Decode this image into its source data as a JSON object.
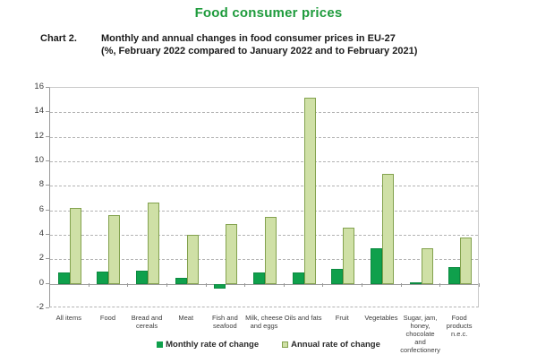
{
  "page": {
    "title": "Food consumer prices",
    "chart_label": "Chart 2.",
    "heading_line1": "Monthly and annual changes in food consumer prices in EU-27",
    "heading_line2": "(%, February 2022 compared to January 2022 and to February 2021)"
  },
  "colors": {
    "title_green": "#1e9b3c",
    "monthly_fill": "#0fa04c",
    "monthly_border": "#0b8a40",
    "annual_fill": "#cfe0a6",
    "annual_border": "#83a24e",
    "grid": "#b3b3b3",
    "frame": "#c9c9c9",
    "axis": "#999999",
    "text": "#1a1a1a",
    "axis_text": "#3c3c3c"
  },
  "chart_data": {
    "type": "bar",
    "title": "Food consumer prices",
    "xlabel": "",
    "ylabel": "",
    "ylim": [
      -2,
      16
    ],
    "ytick_step": 2,
    "grid": "horizontal-dashed",
    "legend_position": "bottom",
    "categories": [
      "All items",
      "Food",
      "Bread and\ncereals",
      "Meat",
      "Fish and\nseafood",
      "Milk, cheese\nand eggs",
      "Oils and fats",
      "Fruit",
      "Vegetables",
      "Sugar, jam,\nhoney,\nchocolate\nand\nconfectionery",
      "Food\nproducts\nn.e.c."
    ],
    "series": [
      {
        "name": "Monthly rate of change",
        "values": [
          0.9,
          1.0,
          1.1,
          0.5,
          -0.4,
          0.9,
          0.9,
          1.2,
          2.9,
          0.1,
          1.4
        ]
      },
      {
        "name": "Annual rate of change",
        "values": [
          6.2,
          5.6,
          6.6,
          4.0,
          4.9,
          5.5,
          15.2,
          4.6,
          9.0,
          2.9,
          3.8
        ]
      }
    ]
  },
  "legend": {
    "monthly_label": "Monthly rate of change",
    "annual_label": "Annual rate of change"
  }
}
